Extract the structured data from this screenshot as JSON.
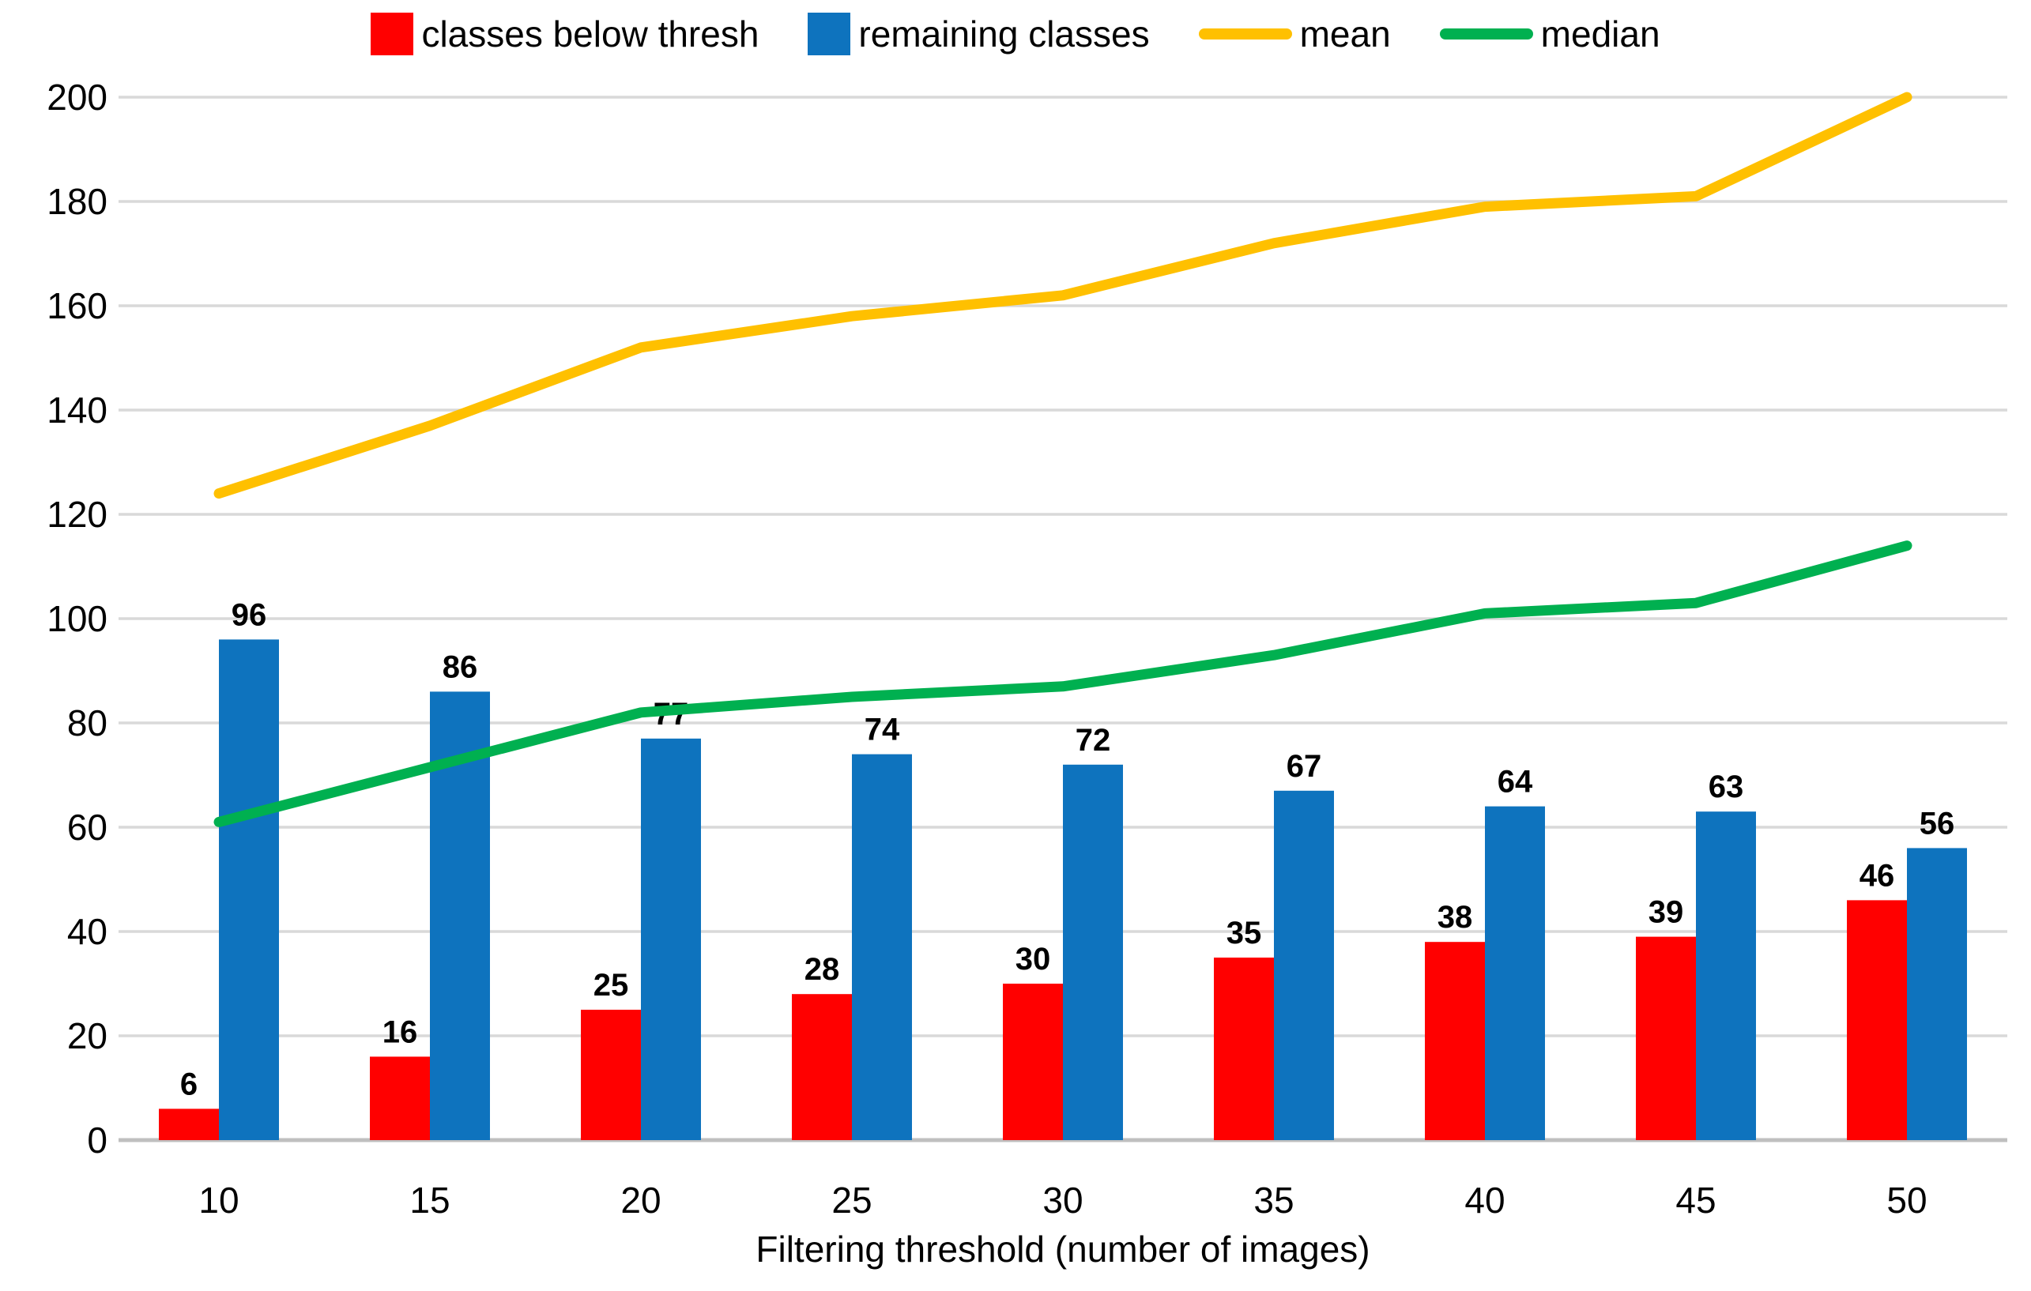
{
  "legend": [
    {
      "label": "classes below thresh",
      "swatch": "square",
      "color": "#FF0000"
    },
    {
      "label": "remaining classes",
      "swatch": "square",
      "color": "#0E73BE"
    },
    {
      "label": "mean",
      "swatch": "line",
      "color": "#FFC000"
    },
    {
      "label": "median",
      "swatch": "line",
      "color": "#00B050"
    }
  ],
  "chart_data": {
    "type": "combo-bar-line",
    "title": "",
    "xlabel": "Filtering threshold (number of images)",
    "ylabel": "",
    "categories": [
      10,
      15,
      20,
      25,
      30,
      35,
      40,
      45,
      50
    ],
    "series": [
      {
        "name": "classes below thresh",
        "type": "bar",
        "color": "#FF0000",
        "values": [
          6,
          16,
          25,
          28,
          30,
          35,
          38,
          39,
          46
        ],
        "data_labels": true
      },
      {
        "name": "remaining classes",
        "type": "bar",
        "color": "#0E73BE",
        "values": [
          96,
          86,
          77,
          74,
          72,
          67,
          64,
          63,
          56
        ],
        "data_labels": true
      },
      {
        "name": "mean",
        "type": "line",
        "color": "#FFC000",
        "values": [
          124,
          137,
          152,
          158,
          162,
          172,
          179,
          181,
          200
        ],
        "data_labels": false
      },
      {
        "name": "median",
        "type": "line",
        "color": "#00B050",
        "values": [
          61,
          71.5,
          82,
          85,
          87,
          93,
          101,
          103,
          114
        ],
        "data_labels": false
      }
    ],
    "ylim": [
      0,
      200
    ],
    "yticks": [
      0,
      20,
      40,
      60,
      80,
      100,
      120,
      140,
      160,
      180,
      200
    ],
    "grid": "horizontal",
    "gridline_color": "#D9D9D9",
    "axis_line_color": "#BFBFBF",
    "legend_position": "top"
  }
}
